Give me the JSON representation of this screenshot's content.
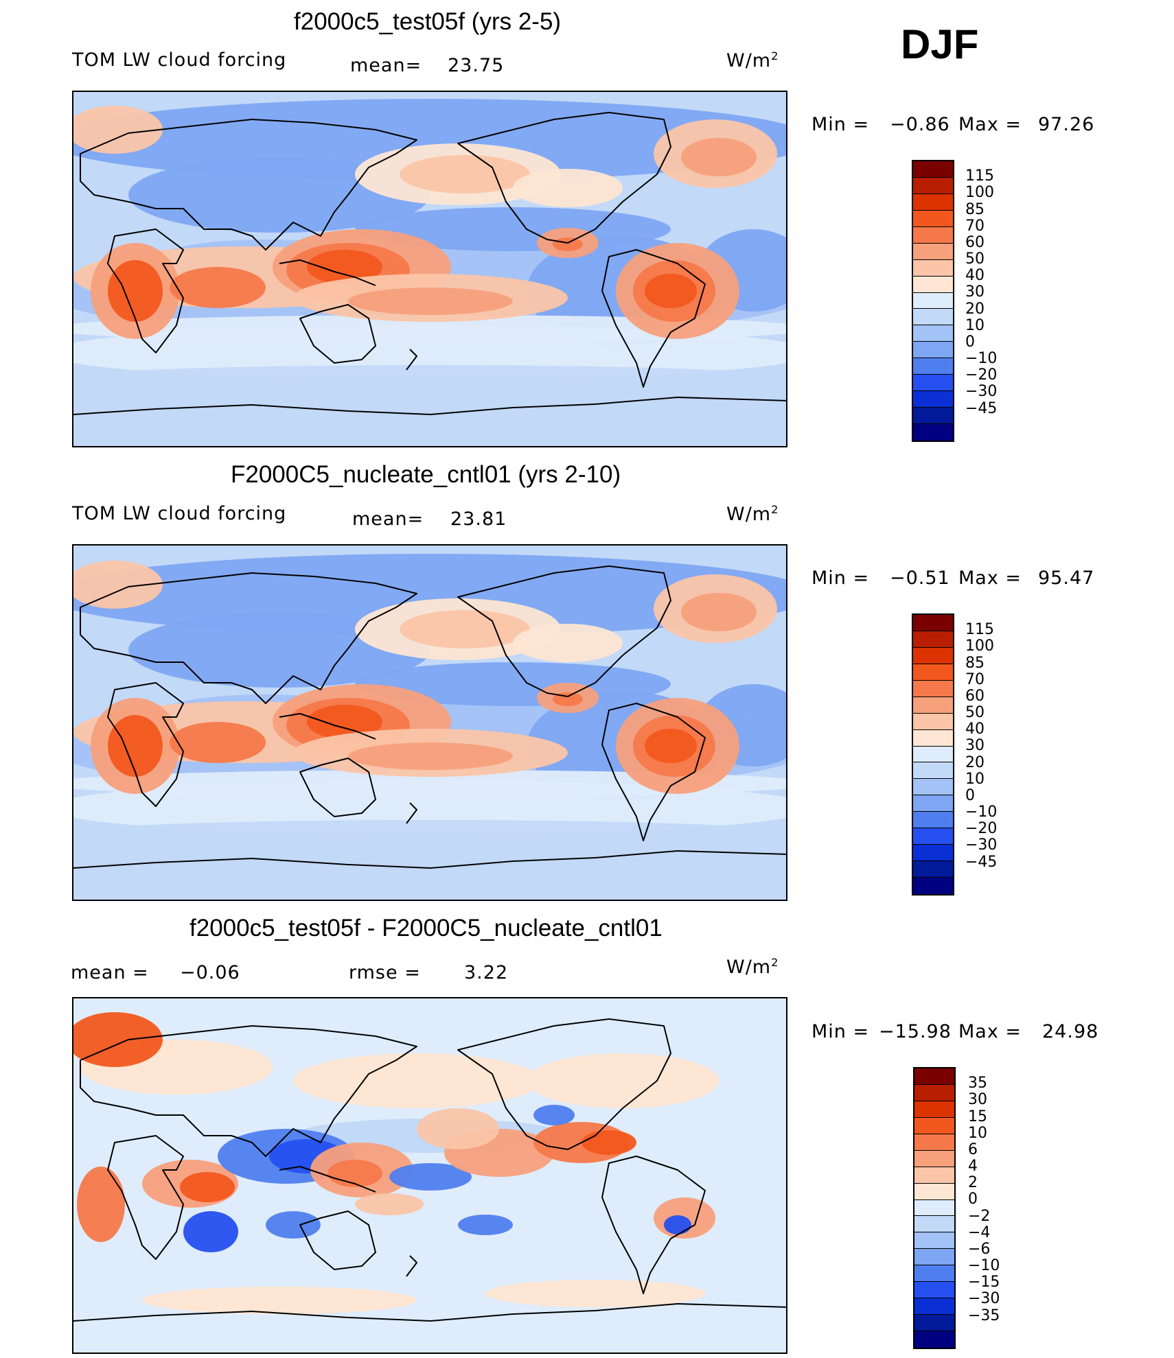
{
  "season": "DJF",
  "units": "W/m",
  "units_sup": "2",
  "panels": [
    {
      "title": "f2000c5_test05f (yrs 2-5)",
      "variable": "TOM LW cloud forcing",
      "mean_label": "mean=",
      "mean_value": "23.75",
      "min_label": "Min  =",
      "min_value": "−0.86",
      "max_label": "Max  =",
      "max_value": "97.26"
    },
    {
      "title": "F2000C5_nucleate_cntl01 (yrs 2-10)",
      "variable": "TOM LW cloud forcing",
      "mean_label": "mean=",
      "mean_value": "23.81",
      "min_label": "Min  =",
      "min_value": "−0.51",
      "max_label": "Max  =",
      "max_value": "95.47"
    },
    {
      "title": "f2000c5_test05f - F2000C5_nucleate_cntl01",
      "mean_label": "mean  =",
      "mean_value": "−0.06",
      "rmse_label": "rmse  =",
      "rmse_value": "3.22",
      "min_label": "Min  =",
      "min_value": "−15.98",
      "max_label": "Max  =",
      "max_value": "24.98"
    }
  ],
  "chart_data": [
    {
      "type": "heatmap",
      "title": "f2000c5_test05f (yrs 2-5)",
      "variable": "TOM LW cloud forcing",
      "units": "W/m2",
      "mean": 23.75,
      "min": -0.86,
      "max": 97.26,
      "projection": "cylindrical equidistant, centered on the Pacific",
      "colorbar_levels": [
        "115",
        "100",
        "85",
        "70",
        "60",
        "50",
        "40",
        "30",
        "20",
        "10",
        "0",
        "−10",
        "−20",
        "−30",
        "−45"
      ],
      "colorbar_colors": [
        "#7a0000",
        "#b81e00",
        "#dd3300",
        "#f2581e",
        "#f5794a",
        "#f7a07c",
        "#fac5a8",
        "#fde6d3",
        "#dfecfb",
        "#c2d9f8",
        "#a3c2f5",
        "#7ea6f2",
        "#4f7fef",
        "#2550ef",
        "#0a2fd4",
        "#001a9a",
        "#000080"
      ]
    },
    {
      "type": "heatmap",
      "title": "F2000C5_nucleate_cntl01 (yrs 2-10)",
      "variable": "TOM LW cloud forcing",
      "units": "W/m2",
      "mean": 23.81,
      "min": -0.51,
      "max": 95.47,
      "projection": "cylindrical equidistant, centered on the Pacific",
      "colorbar_levels": [
        "115",
        "100",
        "85",
        "70",
        "60",
        "50",
        "40",
        "30",
        "20",
        "10",
        "0",
        "−10",
        "−20",
        "−30",
        "−45"
      ],
      "colorbar_colors": [
        "#7a0000",
        "#b81e00",
        "#dd3300",
        "#f2581e",
        "#f5794a",
        "#f7a07c",
        "#fac5a8",
        "#fde6d3",
        "#dfecfb",
        "#c2d9f8",
        "#a3c2f5",
        "#7ea6f2",
        "#4f7fef",
        "#2550ef",
        "#0a2fd4",
        "#001a9a",
        "#000080"
      ]
    },
    {
      "type": "heatmap",
      "title": "f2000c5_test05f - F2000C5_nucleate_cntl01",
      "units": "W/m2",
      "mean": -0.06,
      "rmse": 3.22,
      "min": -15.98,
      "max": 24.98,
      "projection": "cylindrical equidistant, centered on the Pacific",
      "colorbar_levels": [
        "35",
        "30",
        "15",
        "10",
        "6",
        "4",
        "2",
        "0",
        "−2",
        "−4",
        "−6",
        "−10",
        "−15",
        "−30",
        "−35"
      ],
      "colorbar_colors": [
        "#7a0000",
        "#b81e00",
        "#dd3300",
        "#f2581e",
        "#f5794a",
        "#f7a07c",
        "#fac5a8",
        "#fde6d3",
        "#dfecfb",
        "#c2d9f8",
        "#a3c2f5",
        "#7ea6f2",
        "#4f7fef",
        "#2550ef",
        "#0a2fd4",
        "#001a9a",
        "#000080"
      ]
    }
  ]
}
